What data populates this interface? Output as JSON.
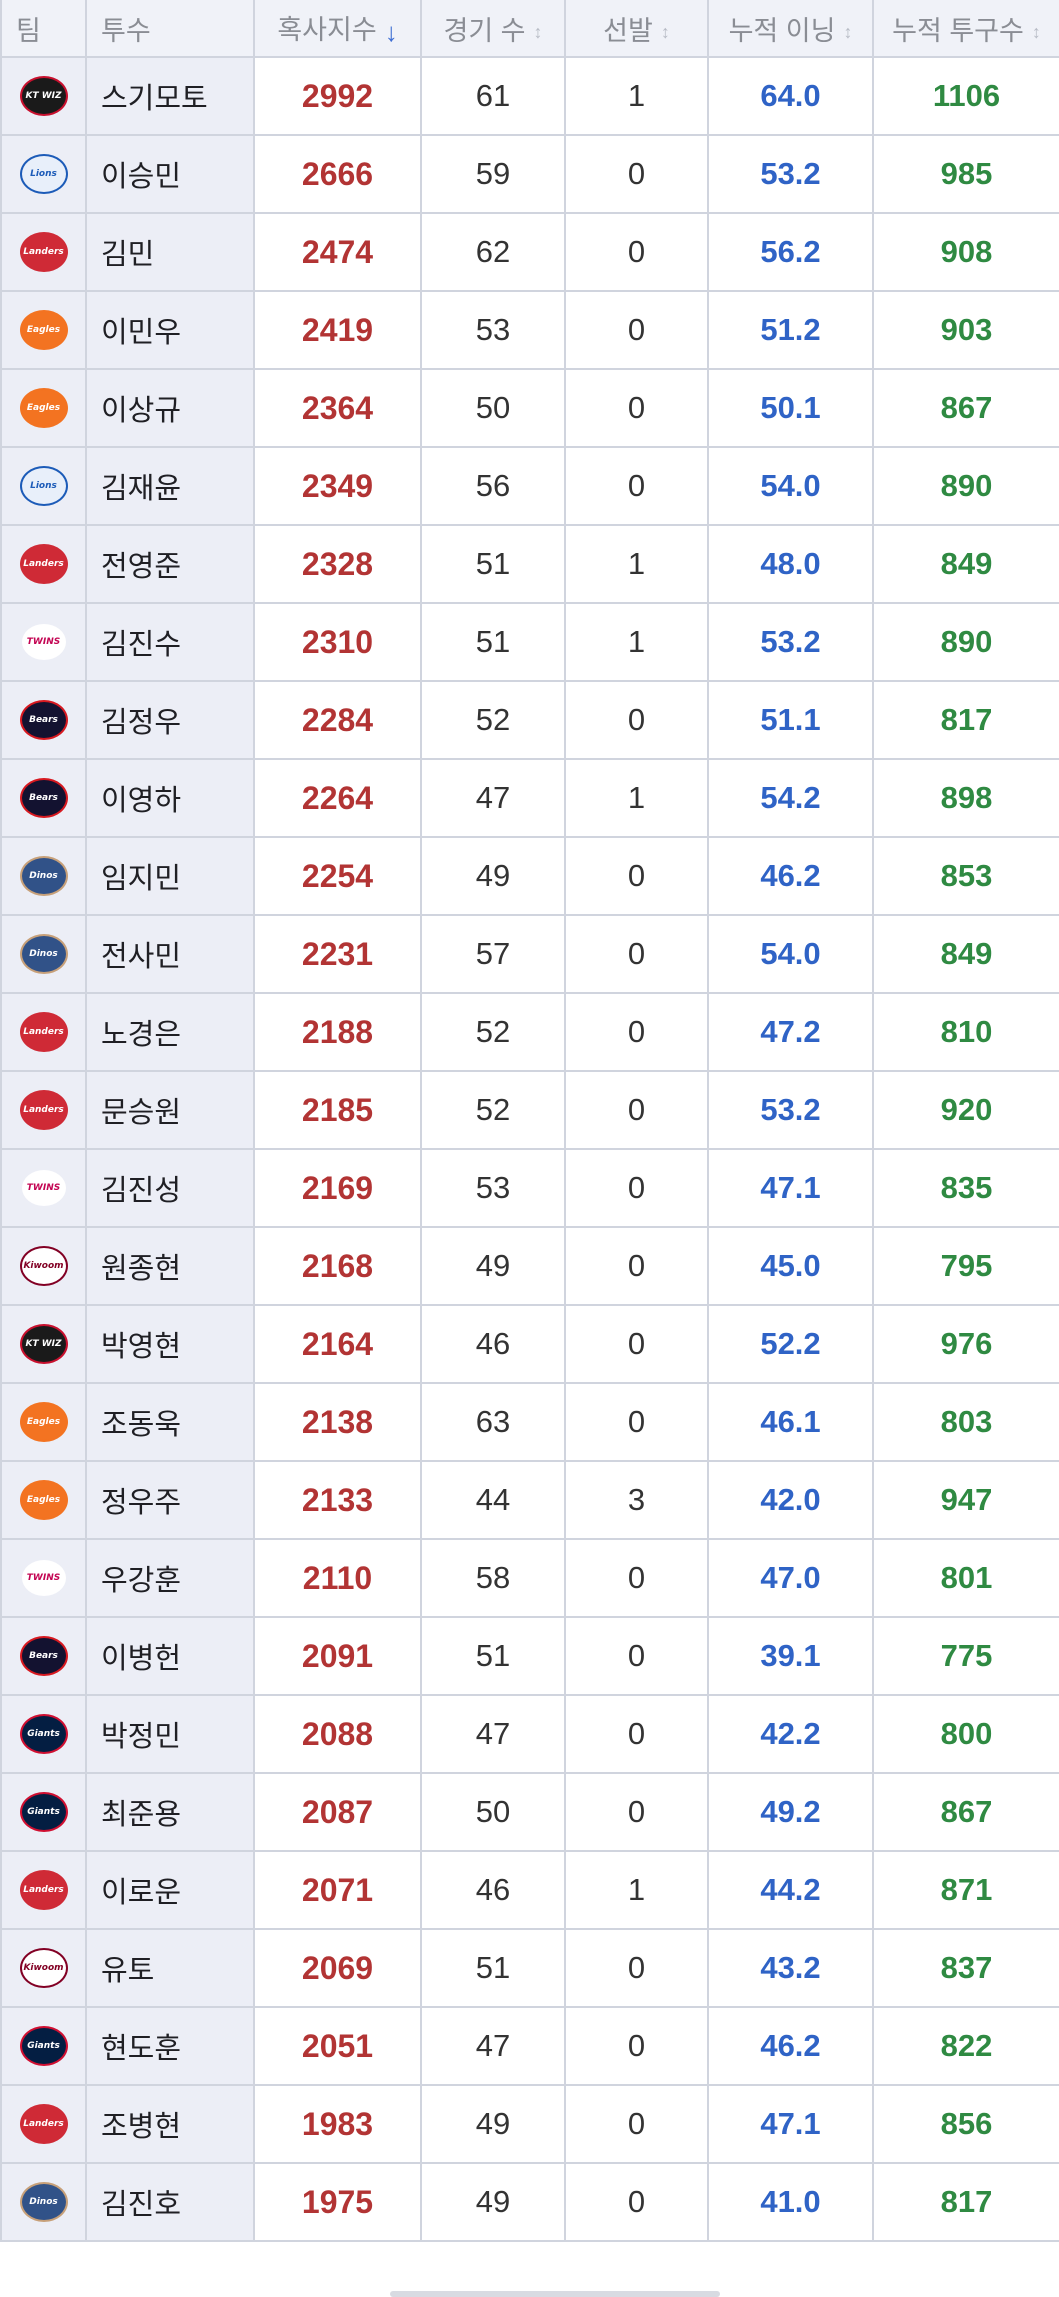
{
  "columns": {
    "team": "팀",
    "pitcher": "투수",
    "ratio": "혹사지수",
    "games": "경기 수",
    "starts": "선발",
    "innings": "누적 이닝",
    "pitches": "누적 투구수"
  },
  "sort_icons": {
    "active": "↓",
    "inactive": "↕"
  },
  "team_logos": {
    "ktwiz": {
      "text": "KT WIZ",
      "bg": "#1a1a1a",
      "fg": "#ffffff",
      "border": "#c8102e"
    },
    "lions": {
      "text": "Lions",
      "bg": "#e8effa",
      "fg": "#1c5bb8",
      "border": "#1c5bb8"
    },
    "landers": {
      "text": "Landers",
      "bg": "#cf2a36",
      "fg": "#ffffff",
      "border": "#cf2a36"
    },
    "eagles": {
      "text": "Eagles",
      "bg": "#f37321",
      "fg": "#ffffff",
      "border": "#f37321"
    },
    "twins": {
      "text": "TWINS",
      "bg": "#ffffff",
      "fg": "#c30452",
      "border": "#eceef6"
    },
    "bears": {
      "text": "Bears",
      "bg": "#131230",
      "fg": "#ffffff",
      "border": "#d71920"
    },
    "dinos": {
      "text": "Dinos",
      "bg": "#315288",
      "fg": "#ffffff",
      "border": "#c7a079"
    },
    "kiwoom": {
      "text": "Kiwoom",
      "bg": "#ffffff",
      "fg": "#820024",
      "border": "#820024"
    },
    "giants": {
      "text": "Giants",
      "bg": "#041e42",
      "fg": "#ffffff",
      "border": "#d00f31"
    }
  },
  "rows": [
    {
      "team": "ktwiz",
      "pitcher": "스기모토",
      "ratio": "2992",
      "games": "61",
      "starts": "1",
      "innings": "64.0",
      "pitches": "1106"
    },
    {
      "team": "lions",
      "pitcher": "이승민",
      "ratio": "2666",
      "games": "59",
      "starts": "0",
      "innings": "53.2",
      "pitches": "985"
    },
    {
      "team": "landers",
      "pitcher": "김민",
      "ratio": "2474",
      "games": "62",
      "starts": "0",
      "innings": "56.2",
      "pitches": "908"
    },
    {
      "team": "eagles",
      "pitcher": "이민우",
      "ratio": "2419",
      "games": "53",
      "starts": "0",
      "innings": "51.2",
      "pitches": "903"
    },
    {
      "team": "eagles",
      "pitcher": "이상규",
      "ratio": "2364",
      "games": "50",
      "starts": "0",
      "innings": "50.1",
      "pitches": "867"
    },
    {
      "team": "lions",
      "pitcher": "김재윤",
      "ratio": "2349",
      "games": "56",
      "starts": "0",
      "innings": "54.0",
      "pitches": "890"
    },
    {
      "team": "landers",
      "pitcher": "전영준",
      "ratio": "2328",
      "games": "51",
      "starts": "1",
      "innings": "48.0",
      "pitches": "849"
    },
    {
      "team": "twins",
      "pitcher": "김진수",
      "ratio": "2310",
      "games": "51",
      "starts": "1",
      "innings": "53.2",
      "pitches": "890"
    },
    {
      "team": "bears",
      "pitcher": "김정우",
      "ratio": "2284",
      "games": "52",
      "starts": "0",
      "innings": "51.1",
      "pitches": "817"
    },
    {
      "team": "bears",
      "pitcher": "이영하",
      "ratio": "2264",
      "games": "47",
      "starts": "1",
      "innings": "54.2",
      "pitches": "898"
    },
    {
      "team": "dinos",
      "pitcher": "임지민",
      "ratio": "2254",
      "games": "49",
      "starts": "0",
      "innings": "46.2",
      "pitches": "853"
    },
    {
      "team": "dinos",
      "pitcher": "전사민",
      "ratio": "2231",
      "games": "57",
      "starts": "0",
      "innings": "54.0",
      "pitches": "849"
    },
    {
      "team": "landers",
      "pitcher": "노경은",
      "ratio": "2188",
      "games": "52",
      "starts": "0",
      "innings": "47.2",
      "pitches": "810"
    },
    {
      "team": "landers",
      "pitcher": "문승원",
      "ratio": "2185",
      "games": "52",
      "starts": "0",
      "innings": "53.2",
      "pitches": "920"
    },
    {
      "team": "twins",
      "pitcher": "김진성",
      "ratio": "2169",
      "games": "53",
      "starts": "0",
      "innings": "47.1",
      "pitches": "835"
    },
    {
      "team": "kiwoom",
      "pitcher": "원종현",
      "ratio": "2168",
      "games": "49",
      "starts": "0",
      "innings": "45.0",
      "pitches": "795"
    },
    {
      "team": "ktwiz",
      "pitcher": "박영현",
      "ratio": "2164",
      "games": "46",
      "starts": "0",
      "innings": "52.2",
      "pitches": "976"
    },
    {
      "team": "eagles",
      "pitcher": "조동욱",
      "ratio": "2138",
      "games": "63",
      "starts": "0",
      "innings": "46.1",
      "pitches": "803"
    },
    {
      "team": "eagles",
      "pitcher": "정우주",
      "ratio": "2133",
      "games": "44",
      "starts": "3",
      "innings": "42.0",
      "pitches": "947"
    },
    {
      "team": "twins",
      "pitcher": "우강훈",
      "ratio": "2110",
      "games": "58",
      "starts": "0",
      "innings": "47.0",
      "pitches": "801"
    },
    {
      "team": "bears",
      "pitcher": "이병헌",
      "ratio": "2091",
      "games": "51",
      "starts": "0",
      "innings": "39.1",
      "pitches": "775"
    },
    {
      "team": "giants",
      "pitcher": "박정민",
      "ratio": "2088",
      "games": "47",
      "starts": "0",
      "innings": "42.2",
      "pitches": "800"
    },
    {
      "team": "giants",
      "pitcher": "최준용",
      "ratio": "2087",
      "games": "50",
      "starts": "0",
      "innings": "49.2",
      "pitches": "867"
    },
    {
      "team": "landers",
      "pitcher": "이로운",
      "ratio": "2071",
      "games": "46",
      "starts": "1",
      "innings": "44.2",
      "pitches": "871"
    },
    {
      "team": "kiwoom",
      "pitcher": "유토",
      "ratio": "2069",
      "games": "51",
      "starts": "0",
      "innings": "43.2",
      "pitches": "837"
    },
    {
      "team": "giants",
      "pitcher": "현도훈",
      "ratio": "2051",
      "games": "47",
      "starts": "0",
      "innings": "46.2",
      "pitches": "822"
    },
    {
      "team": "landers",
      "pitcher": "조병현",
      "ratio": "1983",
      "games": "49",
      "starts": "0",
      "innings": "47.1",
      "pitches": "856"
    },
    {
      "team": "dinos",
      "pitcher": "김진호",
      "ratio": "1975",
      "games": "49",
      "starts": "0",
      "innings": "41.0",
      "pitches": "817"
    }
  ]
}
